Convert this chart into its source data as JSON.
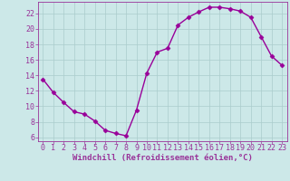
{
  "x": [
    0,
    1,
    2,
    3,
    4,
    5,
    6,
    7,
    8,
    9,
    10,
    11,
    12,
    13,
    14,
    15,
    16,
    17,
    18,
    19,
    20,
    21,
    22,
    23
  ],
  "y": [
    13.5,
    11.8,
    10.5,
    9.3,
    9.0,
    8.1,
    6.9,
    6.5,
    6.2,
    9.5,
    14.3,
    17.0,
    17.5,
    20.5,
    21.5,
    22.2,
    22.8,
    22.8,
    22.6,
    22.3,
    21.5,
    19.0,
    16.5,
    15.3
  ],
  "line_color": "#990099",
  "marker": "D",
  "markersize": 2.5,
  "linewidth": 1.0,
  "xlabel": "Windchill (Refroidissement éolien,°C)",
  "ylabel": "",
  "title": "",
  "xlim": [
    -0.5,
    23.5
  ],
  "ylim": [
    5.5,
    23.5
  ],
  "yticks": [
    6,
    8,
    10,
    12,
    14,
    16,
    18,
    20,
    22
  ],
  "xticks": [
    0,
    1,
    2,
    3,
    4,
    5,
    6,
    7,
    8,
    9,
    10,
    11,
    12,
    13,
    14,
    15,
    16,
    17,
    18,
    19,
    20,
    21,
    22,
    23
  ],
  "bg_color": "#cce8e8",
  "grid_color": "#aacccc",
  "axis_color": "#993399",
  "label_color": "#993399",
  "tick_color": "#993399",
  "font_size": 6,
  "xlabel_fontsize": 6.5
}
